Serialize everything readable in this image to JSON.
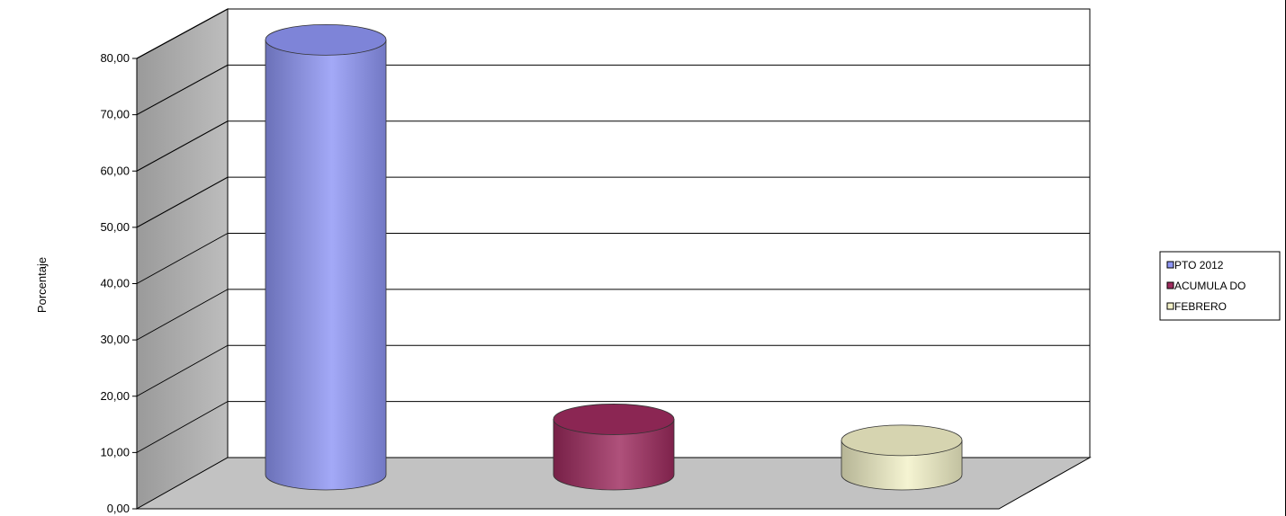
{
  "chart_data": {
    "type": "bar",
    "style": "3d-cylinder",
    "categories": [
      ""
    ],
    "series": [
      {
        "name": "PTO  2012",
        "values": [
          82.5
        ],
        "color": "#8f96f5"
      },
      {
        "name": "ACUMULA DO",
        "values": [
          10.5
        ],
        "color": "#9e2b5e"
      },
      {
        "name": "FEBRERO",
        "values": [
          6.5
        ],
        "color": "#f3f1c8"
      }
    ],
    "title": "",
    "xlabel": "",
    "ylabel": "Porcentaje",
    "ylim": [
      0,
      80
    ],
    "yticks": [
      0,
      10,
      20,
      30,
      40,
      50,
      60,
      70,
      80
    ],
    "ytick_labels": [
      "0,00",
      "10,00",
      "20,00",
      "30,00",
      "40,00",
      "50,00",
      "60,00",
      "70,00",
      "80,00"
    ],
    "grid": true,
    "legend_position": "right"
  }
}
